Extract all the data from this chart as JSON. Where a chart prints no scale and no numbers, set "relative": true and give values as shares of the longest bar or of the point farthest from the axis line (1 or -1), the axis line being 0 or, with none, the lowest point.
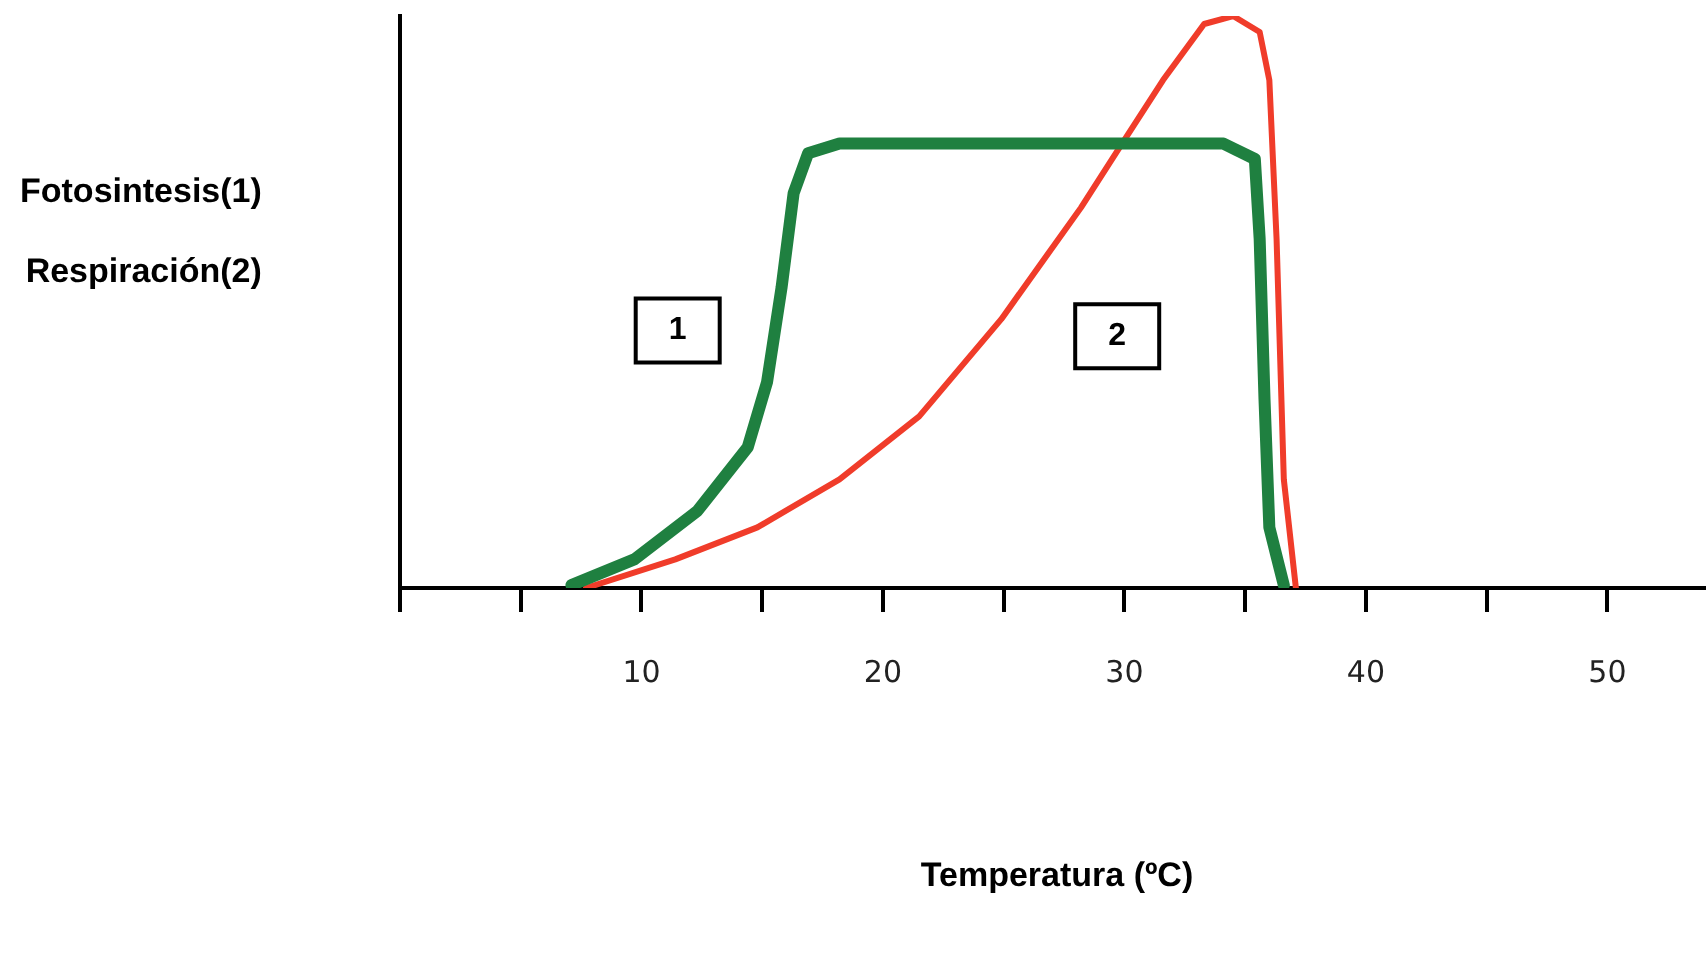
{
  "chart_data": {
    "type": "line",
    "relative": true,
    "xlabel": "Temperatura (ºC)",
    "ylabel": "Fotosintesis(1)\nRespiración(2)",
    "xlim": [
      0,
      54
    ],
    "xticks": [
      {
        "value": 0,
        "label": null
      },
      {
        "value": 5,
        "label": null
      },
      10,
      {
        "value": 15,
        "label": null
      },
      20,
      {
        "value": 25,
        "label": null
      },
      30,
      {
        "value": 35,
        "label": null
      },
      40,
      {
        "value": 45,
        "label": null
      },
      50
    ],
    "grid": false,
    "legend": false,
    "marker": "none",
    "line_style": "solid",
    "series": [
      {
        "color": "#1f8040",
        "x": [
          7.1,
          9.7,
          12.3,
          14.4,
          15.2,
          15.8,
          16.3,
          16.9,
          18.2,
          34.1,
          35.4,
          35.6,
          35.8,
          36.0,
          36.6
        ],
        "values": [
          0.005,
          0.05,
          0.134,
          0.246,
          0.36,
          0.525,
          0.69,
          0.76,
          0.777,
          0.777,
          0.75,
          0.61,
          0.33,
          0.106,
          0.005
        ]
      },
      {
        "color": "#f03c2a",
        "x": [
          7.7,
          11.4,
          14.8,
          18.2,
          21.5,
          24.9,
          28.2,
          29.9,
          31.6,
          33.3,
          34.5,
          35.6,
          36.0,
          36.3,
          36.6,
          37.1
        ],
        "values": [
          0,
          0.05,
          0.106,
          0.19,
          0.3,
          0.47,
          0.665,
          0.777,
          0.888,
          0.986,
          1,
          0.972,
          0.888,
          0.61,
          0.19,
          0
        ]
      }
    ],
    "annotations": [
      {
        "text": "1",
        "x": 11.5,
        "y": 0.45
      },
      {
        "text": "2",
        "x": 29.7,
        "y": 0.44
      }
    ]
  }
}
